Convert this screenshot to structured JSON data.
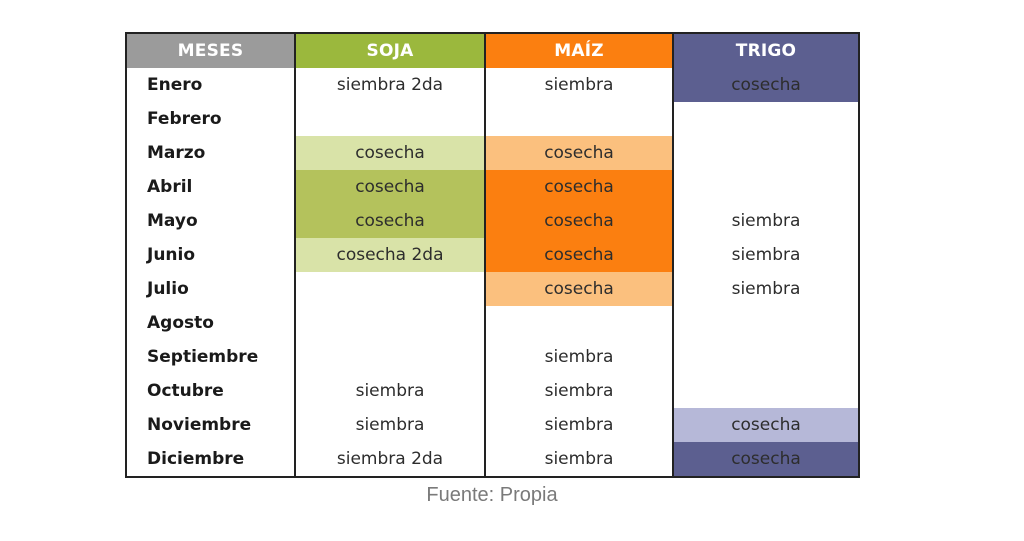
{
  "table": {
    "headers": [
      {
        "label": "MESES",
        "color": "#9b9b9b"
      },
      {
        "label": "SOJA",
        "color": "#9bb83d"
      },
      {
        "label": "MAÍZ",
        "color": "#fb7f10"
      },
      {
        "label": "TRIGO",
        "color": "#5c5f90"
      }
    ],
    "rows": [
      {
        "month": "Enero",
        "soja": "siembra 2da",
        "maiz": "siembra",
        "trigo": "cosecha",
        "soja_bg": "#ffffff",
        "maiz_bg": "#ffffff",
        "trigo_bg": "#5c5f90"
      },
      {
        "month": "Febrero",
        "soja": "",
        "maiz": "",
        "trigo": "",
        "soja_bg": "#ffffff",
        "maiz_bg": "#ffffff",
        "trigo_bg": "#ffffff"
      },
      {
        "month": "Marzo",
        "soja": "cosecha",
        "maiz": "cosecha",
        "trigo": "",
        "soja_bg": "#d9e3a8",
        "maiz_bg": "#fbc07e",
        "trigo_bg": "#ffffff"
      },
      {
        "month": "Abril",
        "soja": "cosecha",
        "maiz": "cosecha",
        "trigo": "",
        "soja_bg": "#b4c25c",
        "maiz_bg": "#fb7f10",
        "trigo_bg": "#ffffff"
      },
      {
        "month": "Mayo",
        "soja": "cosecha",
        "maiz": "cosecha",
        "trigo": "siembra",
        "soja_bg": "#b4c25c",
        "maiz_bg": "#fb7f10",
        "trigo_bg": "#ffffff"
      },
      {
        "month": "Junio",
        "soja": "cosecha 2da",
        "maiz": "cosecha",
        "trigo": "siembra",
        "soja_bg": "#d9e3a8",
        "maiz_bg": "#fb7f10",
        "trigo_bg": "#ffffff"
      },
      {
        "month": "Julio",
        "soja": "",
        "maiz": "cosecha",
        "trigo": "siembra",
        "soja_bg": "#ffffff",
        "maiz_bg": "#fbc07e",
        "trigo_bg": "#ffffff"
      },
      {
        "month": "Agosto",
        "soja": "",
        "maiz": "",
        "trigo": "",
        "soja_bg": "#ffffff",
        "maiz_bg": "#ffffff",
        "trigo_bg": "#ffffff"
      },
      {
        "month": "Septiembre",
        "soja": "",
        "maiz": "siembra",
        "trigo": "",
        "soja_bg": "#ffffff",
        "maiz_bg": "#ffffff",
        "trigo_bg": "#ffffff"
      },
      {
        "month": "Octubre",
        "soja": "siembra",
        "maiz": "siembra",
        "trigo": "",
        "soja_bg": "#ffffff",
        "maiz_bg": "#ffffff",
        "trigo_bg": "#ffffff"
      },
      {
        "month": "Noviembre",
        "soja": "siembra",
        "maiz": "siembra",
        "trigo": "cosecha",
        "soja_bg": "#ffffff",
        "maiz_bg": "#ffffff",
        "trigo_bg": "#b6b8d8"
      },
      {
        "month": "Diciembre",
        "soja": "siembra 2da",
        "maiz": "siembra",
        "trigo": "cosecha",
        "soja_bg": "#ffffff",
        "maiz_bg": "#ffffff",
        "trigo_bg": "#5c5f90"
      }
    ]
  },
  "caption": "Fuente: Propia"
}
